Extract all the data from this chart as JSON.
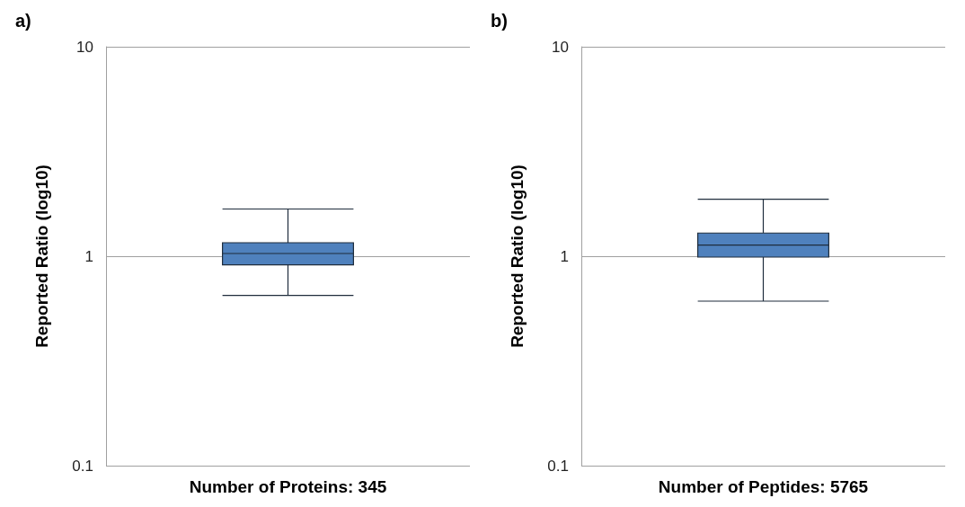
{
  "chart_data": [
    {
      "type": "box",
      "title": "a)",
      "ylabel": "Reported Ratio (log10)",
      "xlabel": "Number of Proteins: 345",
      "categories": [
        null
      ],
      "color": "#4f81bd",
      "boxes": [
        {
          "low": 0.65,
          "q1": 0.91,
          "median": 1.03,
          "q3": 1.16,
          "high": 1.68
        }
      ],
      "ylim": [
        0.1,
        10
      ],
      "yticks": [
        0.1,
        1,
        10
      ],
      "log": true,
      "grid": "y"
    },
    {
      "type": "box",
      "title": "b)",
      "ylabel": "Reported Ratio (log10)",
      "xlabel": "Number of Peptides: 5765",
      "categories": [
        null
      ],
      "color": "#4f81bd",
      "boxes": [
        {
          "low": 0.61,
          "q1": 0.99,
          "median": 1.13,
          "q3": 1.29,
          "high": 1.87
        }
      ],
      "ylim": [
        0.1,
        10
      ],
      "yticks": [
        0.1,
        1,
        10
      ],
      "log": true,
      "grid": "y"
    }
  ]
}
